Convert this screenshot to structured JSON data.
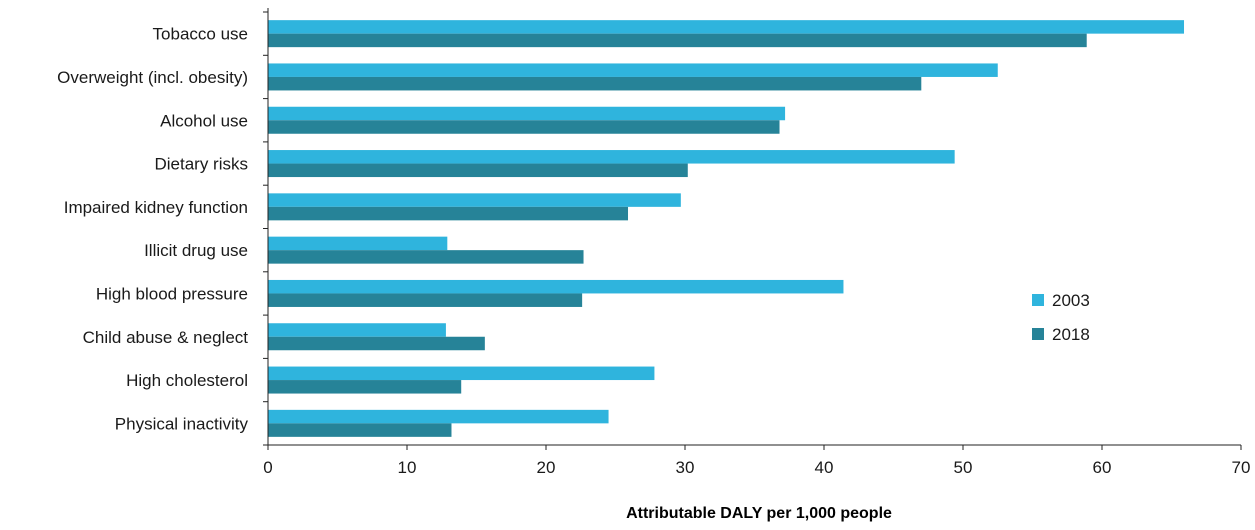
{
  "chart_data": {
    "type": "bar",
    "orientation": "horizontal",
    "categories": [
      "Tobacco use",
      "Overweight (incl. obesity)",
      "Alcohol use",
      "Dietary risks",
      "Impaired kidney function",
      "Illicit drug use",
      "High blood pressure",
      "Child abuse & neglect",
      "High cholesterol",
      "Physical inactivity"
    ],
    "series": [
      {
        "name": "2003",
        "color": "#2fb4dd",
        "values": [
          65.9,
          52.5,
          37.2,
          49.4,
          29.7,
          12.9,
          41.4,
          12.8,
          27.8,
          24.5
        ]
      },
      {
        "name": "2018",
        "color": "#268398",
        "values": [
          58.9,
          47.0,
          36.8,
          30.2,
          25.9,
          22.7,
          22.6,
          15.6,
          13.9,
          13.2
        ]
      }
    ],
    "title": "",
    "xlabel": "Attributable DALY per 1,000 people",
    "ylabel": "",
    "xlim": [
      0,
      70
    ],
    "xticks": [
      "0",
      "10",
      "20",
      "30",
      "40",
      "50",
      "60",
      "70"
    ],
    "grid": false,
    "legend_position": "right"
  }
}
